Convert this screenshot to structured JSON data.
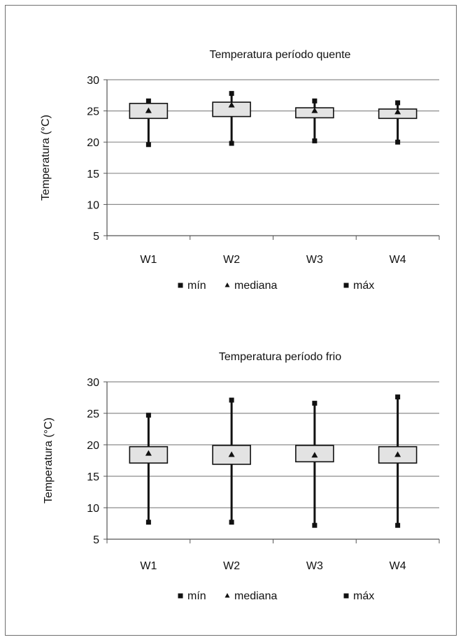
{
  "chart_data": [
    {
      "type": "boxplot",
      "title": "Temperatura período quente",
      "ylabel": "Temperatura (°C)",
      "xlabel": "",
      "ylim": [
        5,
        30
      ],
      "yticks": [
        5,
        10,
        15,
        20,
        25,
        30
      ],
      "grid": true,
      "categories": [
        "W1",
        "W2",
        "W3",
        "W4"
      ],
      "series": [
        {
          "name": "mín",
          "marker": "square",
          "values": [
            19.6,
            19.8,
            20.2,
            20.0
          ]
        },
        {
          "name": "mediana",
          "marker": "triangle",
          "values": [
            25.0,
            25.9,
            25.0,
            24.8
          ]
        },
        {
          "name": "máx",
          "marker": "square",
          "values": [
            26.6,
            27.8,
            26.6,
            26.3
          ]
        }
      ],
      "box_low": [
        23.8,
        24.1,
        23.9,
        23.8
      ],
      "box_high": [
        26.2,
        26.4,
        25.5,
        25.3
      ],
      "legend": [
        "mín",
        "mediana",
        "máx"
      ],
      "legend_position": "bottom"
    },
    {
      "type": "boxplot",
      "title": "Temperatura período frio",
      "ylabel": "Temperatura (°C)",
      "xlabel": "",
      "ylim": [
        5,
        30
      ],
      "yticks": [
        5,
        10,
        15,
        20,
        25,
        30
      ],
      "grid": true,
      "categories": [
        "W1",
        "W2",
        "W3",
        "W4"
      ],
      "series": [
        {
          "name": "mín",
          "marker": "square",
          "values": [
            7.7,
            7.7,
            7.2,
            7.2
          ]
        },
        {
          "name": "mediana",
          "marker": "triangle",
          "values": [
            18.6,
            18.4,
            18.3,
            18.4
          ]
        },
        {
          "name": "máx",
          "marker": "square",
          "values": [
            24.7,
            27.1,
            26.6,
            27.6
          ]
        }
      ],
      "box_low": [
        17.1,
        16.9,
        17.3,
        17.1
      ],
      "box_high": [
        19.7,
        19.9,
        19.9,
        19.7
      ],
      "legend": [
        "mín",
        "mediana",
        "máx"
      ],
      "legend_position": "bottom"
    }
  ]
}
